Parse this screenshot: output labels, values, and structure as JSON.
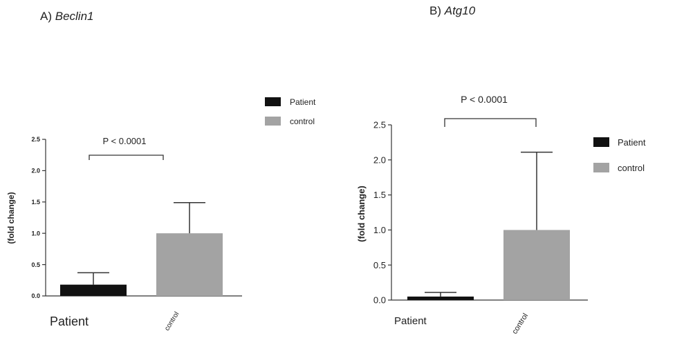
{
  "panels": [
    {
      "prefix": "A)",
      "gene": "Beclin1"
    },
    {
      "prefix": "B)",
      "gene": "Atg10"
    }
  ],
  "chart_data": [
    {
      "type": "bar",
      "categories": [
        "Patient",
        "control"
      ],
      "values": [
        0.18,
        1.0
      ],
      "error": [
        0.19,
        0.49
      ],
      "colors": [
        "#111111",
        "#a3a3a3"
      ],
      "ylabel": "(fold change)",
      "ylim": [
        0,
        2.5
      ],
      "yticks": [
        "0.0",
        "0.5",
        "1.0",
        "1.5",
        "2.0",
        "2.5"
      ],
      "legend": [
        "Patient",
        "control"
      ],
      "annotation": "P < 0.0001"
    },
    {
      "type": "bar",
      "categories": [
        "Patient",
        "control"
      ],
      "values": [
        0.05,
        1.0
      ],
      "error": [
        0.06,
        1.11
      ],
      "colors": [
        "#111111",
        "#a3a3a3"
      ],
      "ylabel": "(fold change)",
      "ylim": [
        0,
        2.5
      ],
      "yticks": [
        "0.0",
        "0.5",
        "1.0",
        "1.5",
        "2.0",
        "2.5"
      ],
      "legend": [
        "Patient",
        "control"
      ],
      "annotation": "P < 0.0001"
    }
  ]
}
